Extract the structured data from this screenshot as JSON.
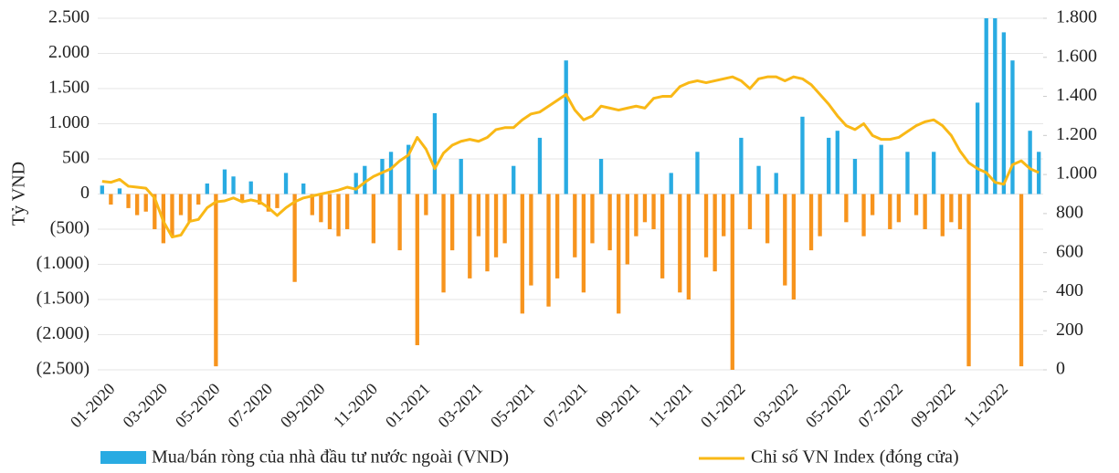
{
  "chart_data": {
    "type": "bar-line",
    "ylabel": "Tỷ VND",
    "categories": [
      "01-2020",
      null,
      null,
      null,
      null,
      null,
      "03-2020",
      null,
      null,
      null,
      null,
      null,
      "05-2020",
      null,
      null,
      null,
      null,
      null,
      "07-2020",
      null,
      null,
      null,
      null,
      null,
      "09-2020",
      null,
      null,
      null,
      null,
      null,
      "11-2020",
      null,
      null,
      null,
      null,
      null,
      "01-2021",
      null,
      null,
      null,
      null,
      null,
      "03-2021",
      null,
      null,
      null,
      null,
      null,
      "05-2021",
      null,
      null,
      null,
      null,
      null,
      "07-2021",
      null,
      null,
      null,
      null,
      null,
      "09-2021",
      null,
      null,
      null,
      null,
      null,
      "11-2021",
      null,
      null,
      null,
      null,
      null,
      "01-2022",
      null,
      null,
      null,
      null,
      null,
      "03-2022",
      null,
      null,
      null,
      null,
      null,
      "05-2022",
      null,
      null,
      null,
      null,
      null,
      "07-2022",
      null,
      null,
      null,
      null,
      null,
      "09-2022",
      null,
      null,
      null,
      null,
      null,
      "11-2022",
      null,
      null,
      null,
      null,
      null
    ],
    "series": [
      {
        "name": "Mua/bán ròng của nhà đầu tư nước ngoài (VND)",
        "type": "bar",
        "color": "#29abe2",
        "negative_color": "#f7941d",
        "values": [
          120,
          -150,
          80,
          -200,
          -300,
          -250,
          -500,
          -700,
          -600,
          -300,
          -400,
          -150,
          150,
          -2450,
          350,
          250,
          -100,
          180,
          -150,
          -250,
          -200,
          300,
          -1250,
          150,
          -300,
          -400,
          -500,
          -600,
          -500,
          300,
          400,
          -700,
          500,
          600,
          -800,
          700,
          -2150,
          -300,
          1150,
          -1400,
          -800,
          500,
          -1200,
          -600,
          -1100,
          -900,
          -700,
          400,
          -1700,
          -1300,
          800,
          -1600,
          -1200,
          1900,
          -900,
          -1400,
          -700,
          500,
          -800,
          -1700,
          -1000,
          -600,
          -400,
          -500,
          -1200,
          300,
          -1400,
          -1500,
          600,
          -900,
          -1100,
          -600,
          -2500,
          800,
          -500,
          400,
          -700,
          300,
          -1300,
          -1500,
          1100,
          -800,
          -600,
          800,
          900,
          -400,
          500,
          -600,
          -300,
          700,
          -500,
          -400,
          600,
          -300,
          -500,
          600,
          -600,
          -400,
          -500,
          -2450,
          1300,
          2500,
          2500,
          2300,
          1900,
          -2450,
          900,
          600
        ]
      },
      {
        "name": "Chỉ số VN Index (đóng cửa)",
        "type": "line",
        "axis": "y2",
        "color": "#f9b816",
        "values": [
          965,
          960,
          975,
          940,
          935,
          930,
          880,
          760,
          680,
          690,
          760,
          770,
          830,
          860,
          865,
          880,
          860,
          870,
          860,
          830,
          790,
          830,
          860,
          880,
          890,
          900,
          910,
          920,
          935,
          925,
          960,
          990,
          1010,
          1030,
          1070,
          1100,
          1190,
          1130,
          1030,
          1110,
          1150,
          1170,
          1180,
          1170,
          1190,
          1230,
          1240,
          1240,
          1280,
          1310,
          1320,
          1350,
          1380,
          1410,
          1330,
          1280,
          1300,
          1350,
          1340,
          1330,
          1340,
          1350,
          1340,
          1390,
          1400,
          1400,
          1450,
          1470,
          1480,
          1470,
          1480,
          1490,
          1500,
          1480,
          1440,
          1490,
          1500,
          1500,
          1480,
          1500,
          1490,
          1460,
          1410,
          1360,
          1300,
          1250,
          1230,
          1260,
          1200,
          1180,
          1180,
          1190,
          1220,
          1250,
          1270,
          1280,
          1250,
          1200,
          1120,
          1060,
          1030,
          1010,
          960,
          950,
          1050,
          1070,
          1030,
          1010
        ]
      }
    ],
    "ylim": [
      -2500,
      2500
    ],
    "yticks": [
      {
        "value": 2500,
        "label": "2.500"
      },
      {
        "value": 2000,
        "label": "2.000"
      },
      {
        "value": 1500,
        "label": "1.500"
      },
      {
        "value": 1000,
        "label": "1.000"
      },
      500,
      0,
      {
        "value": -500,
        "label": "(500)"
      },
      {
        "value": -1000,
        "label": "(1.000)"
      },
      {
        "value": -1500,
        "label": "(1.500)"
      },
      {
        "value": -2000,
        "label": "(2.000)"
      },
      {
        "value": -2500,
        "label": "(2.500)"
      }
    ],
    "y2lim": [
      0,
      1800
    ],
    "y2ticks": [
      {
        "value": 1800,
        "label": "1.800"
      },
      {
        "value": 1600,
        "label": "1.600"
      },
      {
        "value": 1400,
        "label": "1.400"
      },
      {
        "value": 1200,
        "label": "1.200"
      },
      {
        "value": 1000,
        "label": "1.000"
      },
      800,
      600,
      400,
      200,
      0
    ],
    "grid": true
  }
}
